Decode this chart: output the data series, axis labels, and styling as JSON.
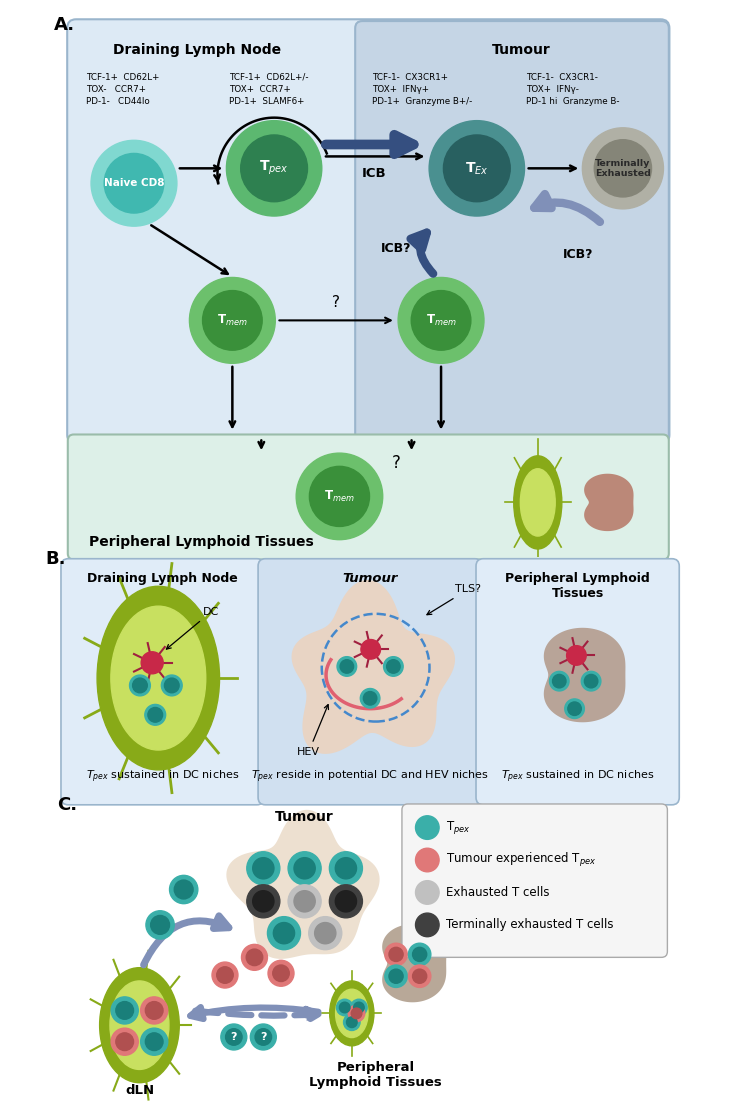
{
  "colors": {
    "tpex_outer": "#5cb870",
    "tpex_inner": "#2e8050",
    "naive_outer": "#80d8d0",
    "naive_inner": "#40b8b0",
    "tmem_outer": "#6cc06c",
    "tmem_inner": "#3a903a",
    "tex_outer": "#4a9090",
    "tex_inner": "#286060",
    "exhausted_outer": "#b8b8b0",
    "exhausted_inner": "#888878",
    "teal_cell": "#3aafa9",
    "teal_outer": "#3aafa9",
    "teal_inner": "#1a7f7a",
    "pink_cell": "#e07878",
    "pink_outer": "#e07878",
    "pink_inner": "#b05050",
    "gray_cell": "#c0c0c0",
    "gray_outer": "#c0c0c0",
    "gray_inner": "#909090",
    "dark_cell": "#404040",
    "dark_outer": "#404040",
    "dark_inner": "#202020",
    "blue_arrow_dark": "#354f80",
    "blue_arrow_light": "#8090b8",
    "ln_green_outer": "#88aa18",
    "ln_green_inner": "#c8e060",
    "spleen_color": "#b89888",
    "tumour_color": "#e8d8c8",
    "bg_A_outer": "#d8e8f5",
    "bg_A_dln": "#ddeaf5",
    "bg_A_tumour": "#c5d5e5",
    "bg_peripheral": "#ddf0e8",
    "bg_B_dln": "#e0ecf8",
    "bg_B_tumour": "#d0e0f0",
    "pink_dc": "#c82848"
  },
  "legend_C": [
    {
      "label": "T$_{pex}$",
      "color": "#3aafa9"
    },
    {
      "label": "Tumour experienced T$_{pex}$",
      "color": "#e07878"
    },
    {
      "label": "Exhausted T cells",
      "color": "#c0c0c0"
    },
    {
      "label": "Terminally exhausted T cells",
      "color": "#404040"
    }
  ]
}
